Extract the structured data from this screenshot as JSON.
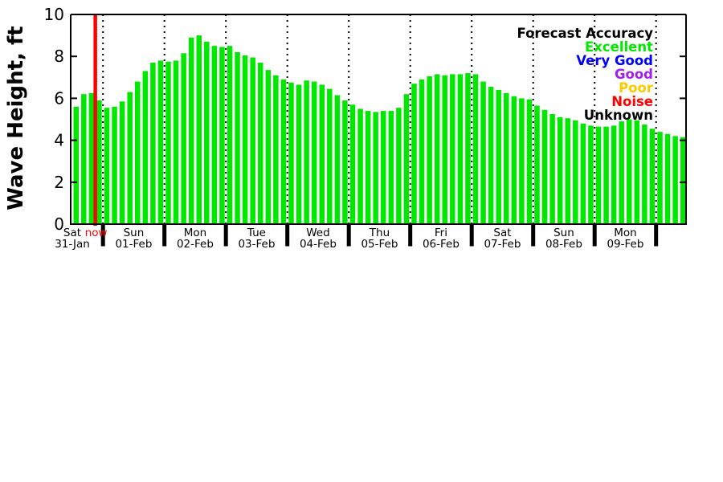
{
  "chart_data": {
    "type": "bar",
    "title": "",
    "ylabel": "Wave Height, ft",
    "xlabel": "",
    "ylim": [
      0,
      10
    ],
    "y_ticks": [
      0,
      2,
      4,
      6,
      8,
      10
    ],
    "grid": "vertical dotted lines at day boundaries",
    "legend_position": "top-right-inside",
    "bar_color": "#00e800",
    "background_color": "#ffffff",
    "axis_color": "#000000",
    "bars_per_full_day": 8,
    "now_marker": {
      "label": "now",
      "color": "#ff0000",
      "after_bar_index": 2
    },
    "days": [
      {
        "label": "Sat",
        "date": "31-Jan",
        "heights_ft": [
          5.6,
          6.2,
          6.25,
          5.9
        ]
      },
      {
        "label": "Sun",
        "date": "01-Feb",
        "heights_ft": [
          5.55,
          5.6,
          5.85,
          6.3,
          6.8,
          7.3,
          7.7,
          7.8
        ]
      },
      {
        "label": "Mon",
        "date": "02-Feb",
        "heights_ft": [
          7.75,
          7.8,
          8.15,
          8.9,
          9.0,
          8.7,
          8.5,
          8.45
        ]
      },
      {
        "label": "Tue",
        "date": "03-Feb",
        "heights_ft": [
          8.5,
          8.2,
          8.05,
          7.95,
          7.7,
          7.35,
          7.1,
          6.9
        ]
      },
      {
        "label": "Wed",
        "date": "04-Feb",
        "heights_ft": [
          6.75,
          6.65,
          6.85,
          6.8,
          6.65,
          6.45,
          6.15,
          5.9
        ]
      },
      {
        "label": "Thu",
        "date": "05-Feb",
        "heights_ft": [
          5.7,
          5.5,
          5.4,
          5.35,
          5.4,
          5.4,
          5.55,
          6.2
        ]
      },
      {
        "label": "Fri",
        "date": "06-Feb",
        "heights_ft": [
          6.7,
          6.9,
          7.05,
          7.15,
          7.1,
          7.15,
          7.15,
          7.2
        ]
      },
      {
        "label": "Sat",
        "date": "07-Feb",
        "heights_ft": [
          7.15,
          6.8,
          6.55,
          6.4,
          6.25,
          6.1,
          6.0,
          5.95
        ]
      },
      {
        "label": "Sun",
        "date": "08-Feb",
        "heights_ft": [
          5.65,
          5.45,
          5.25,
          5.1,
          5.05,
          4.95,
          4.8,
          4.7
        ]
      },
      {
        "label": "Mon",
        "date": "09-Feb",
        "heights_ft": [
          4.65,
          4.65,
          4.7,
          4.9,
          5.0,
          4.95,
          4.75,
          4.55
        ]
      },
      {
        "label": "",
        "date": "",
        "heights_ft": [
          4.4,
          4.3,
          4.2,
          4.15
        ]
      }
    ],
    "legend_title": "Forecast Accuracy",
    "legend_entries": [
      {
        "label": "Excellent",
        "color": "#00e800"
      },
      {
        "label": "Very Good",
        "color": "#0000ff"
      },
      {
        "label": "Good",
        "color": "#a020f0"
      },
      {
        "label": "Poor",
        "color": "#ffc800"
      },
      {
        "label": "Noise",
        "color": "#ff0000"
      },
      {
        "label": "Unknown",
        "color": "#000000"
      }
    ]
  }
}
